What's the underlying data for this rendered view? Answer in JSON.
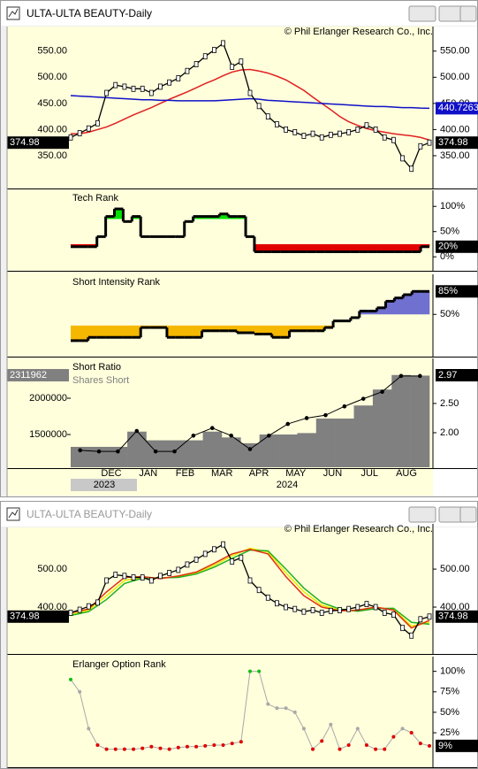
{
  "windows": [
    {
      "title": "ULTA-ULTA BEAUTY-Daily",
      "copyright": "© Phil Erlanger Research Co., Inc.",
      "time_axis": {
        "months": [
          "DEC",
          "JAN",
          "FEB",
          "MAR",
          "APR",
          "MAY",
          "JUN",
          "JUL",
          "AUG"
        ],
        "years": [
          "2023",
          "2024"
        ]
      },
      "panels": [
        {
          "type": "price",
          "ylim": [
            289,
            597
          ],
          "yticks": [
            {
              "value": 550,
              "label": "550.00"
            },
            {
              "value": 500,
              "label": "500.00"
            },
            {
              "value": 450,
              "label": "450.00"
            },
            {
              "value": 400,
              "label": "400.00"
            },
            {
              "value": 350,
              "label": "350.00"
            }
          ],
          "series": [
            {
              "color": "#e02020",
              "values": [
                392,
                392,
                395,
                400,
                405,
                412,
                420,
                428,
                435,
                442,
                450,
                458,
                465,
                472,
                480,
                488,
                495,
                503,
                510,
                514,
                515,
                512,
                508,
                502,
                495,
                485,
                475,
                462,
                450,
                438,
                425,
                415,
                408,
                402,
                398,
                395,
                392,
                390,
                388,
                385,
                380
              ]
            },
            {
              "color": "#1010c8",
              "values": [
                465,
                464,
                463,
                462,
                461,
                460,
                459,
                458,
                457,
                457,
                456,
                456,
                455,
                455,
                455,
                455,
                455,
                456,
                457,
                458,
                459,
                458,
                456,
                455,
                454,
                453,
                452,
                451,
                450,
                449,
                448,
                447,
                446,
                445,
                444,
                444,
                443,
                442,
                442,
                441,
                440.7263
              ],
              "end_label": "440.7263"
            },
            {
              "color": "#000000",
              "values": [
                385,
                393,
                402,
                412,
                470,
                485,
                482,
                478,
                478,
                470,
                482,
                490,
                498,
                512,
                525,
                540,
                552,
                565,
                520,
                530,
                470,
                445,
                425,
                410,
                400,
                395,
                388,
                392,
                385,
                390,
                392,
                395,
                400,
                408,
                400,
                385,
                380,
                345,
                325,
                368,
                374.98
              ],
              "end_label": "374.98"
            }
          ]
        },
        {
          "type": "rank",
          "title": "Tech Rank",
          "ylim": [
            -26,
            132
          ],
          "yticks": [
            {
              "value": 100,
              "label": "100%"
            },
            {
              "value": 50,
              "label": "50%"
            },
            {
              "value": 0,
              "label": "0%"
            }
          ],
          "values": [
            20,
            20,
            20,
            40,
            80,
            95,
            70,
            80,
            40,
            40,
            40,
            40,
            40,
            70,
            80,
            80,
            80,
            85,
            80,
            80,
            40,
            10,
            10,
            10,
            10,
            10,
            10,
            10,
            10,
            10,
            10,
            10,
            10,
            10,
            10,
            10,
            10,
            10,
            10,
            10,
            20
          ],
          "end_label": "20%",
          "fill_above": {
            "level": 75,
            "color": "#00e000"
          },
          "fill_below": {
            "level": 25,
            "color": "#e00000"
          }
        },
        {
          "type": "rank",
          "title": "Short Intensity Rank",
          "ylim": [
            -13,
            111
          ],
          "yticks": [
            {
              "value": 50,
              "label": "50%"
            }
          ],
          "values": [
            10,
            10,
            15,
            15,
            15,
            15,
            15,
            15,
            30,
            30,
            30,
            15,
            15,
            15,
            15,
            25,
            25,
            25,
            25,
            22,
            22,
            20,
            20,
            15,
            15,
            25,
            25,
            25,
            25,
            30,
            40,
            40,
            45,
            55,
            55,
            60,
            70,
            75,
            80,
            85,
            85
          ],
          "end_label": "85%",
          "fill_above": {
            "level": 50,
            "color": "#7070d0"
          },
          "fill_below": {
            "level": 33,
            "color": "#f5b800"
          }
        },
        {
          "type": "short",
          "ylim": [
            1049000,
            2549000
          ],
          "yticks": [
            2000000,
            1500000
          ],
          "y2lim": [
            1.41,
            3.27
          ],
          "y2ticks": [
            {
              "value": 2.5,
              "label": "2.50"
            },
            {
              "value": 2,
              "label": "2.00"
            }
          ],
          "series": [
            {
              "name": "Shares Short",
              "color": "#808080",
              "values": [
                1330000,
                1330000,
                1330000,
                1540000,
                1420000,
                1420000,
                1420000,
                1540000,
                1460000,
                1380000,
                1500000,
                1500000,
                1520000,
                1720000,
                1720000,
                1900000,
                2120000,
                2320000,
                2311962
              ],
              "end_label": "2311962"
            },
            {
              "name": "Short Ratio",
              "color": "#000000",
              "axis": "y2",
              "values": [
                1.7,
                1.68,
                1.68,
                2.03,
                1.68,
                1.68,
                1.95,
                2.08,
                1.95,
                1.72,
                1.95,
                2.15,
                2.25,
                2.3,
                2.45,
                2.58,
                2.7,
                2.97,
                2.97
              ],
              "end_label": "2.97"
            }
          ]
        }
      ]
    },
    {
      "title": "ULTA-ULTA BEAUTY-Daily",
      "copyright": "© Phil Erlanger Research Co., Inc.",
      "panels": [
        {
          "type": "price",
          "ylim": [
            279,
            619
          ],
          "yticks": [
            {
              "value": 500,
              "label": "500.00"
            },
            {
              "value": 400,
              "label": "400.00"
            }
          ],
          "series": [
            {
              "color": "#e8e800",
              "values": [
                380,
                392,
                430,
                470,
                478,
                476,
                480,
                490,
                510,
                535,
                555,
                545,
                490,
                440,
                405,
                392,
                390,
                398,
                395,
                350,
                360
              ]
            },
            {
              "color": "#20b020",
              "values": [
                378,
                388,
                420,
                462,
                476,
                477,
                478,
                487,
                505,
                528,
                550,
                548,
                500,
                450,
                412,
                395,
                389,
                396,
                397,
                360,
                355
              ]
            },
            {
              "color": "#e03010",
              "values": [
                385,
                395,
                440,
                478,
                480,
                475,
                482,
                492,
                515,
                540,
                552,
                540,
                480,
                430,
                400,
                390,
                392,
                400,
                392,
                345,
                365
              ]
            },
            {
              "color": "#000000",
              "values": [
                385,
                393,
                402,
                412,
                470,
                485,
                482,
                478,
                478,
                470,
                482,
                490,
                498,
                512,
                525,
                540,
                552,
                565,
                520,
                530,
                470,
                445,
                425,
                410,
                400,
                395,
                388,
                392,
                385,
                390,
                392,
                395,
                400,
                408,
                400,
                385,
                380,
                345,
                325,
                368,
                374.98
              ],
              "end_label": "374.98"
            }
          ]
        },
        {
          "type": "option",
          "title": "Erlanger Option Rank",
          "ylim": [
            -16,
            118
          ],
          "yticks": [
            {
              "value": 100,
              "label": "100%"
            },
            {
              "value": 75,
              "label": "75%"
            },
            {
              "value": 50,
              "label": "50%"
            },
            {
              "value": 25,
              "label": "25%"
            }
          ],
          "values": [
            90,
            75,
            30,
            10,
            5,
            5,
            5,
            5,
            6,
            8,
            6,
            5,
            7,
            8,
            8,
            9,
            10,
            10,
            12,
            14,
            100,
            100,
            60,
            55,
            55,
            50,
            30,
            5,
            15,
            35,
            5,
            10,
            30,
            10,
            5,
            5,
            20,
            30,
            25,
            12,
            9
          ],
          "end_label": "9%",
          "color": "#a8a8a8",
          "color_above": {
            "level": 85,
            "color": "#10c010"
          },
          "color_below": {
            "level": 30,
            "color": "#e00000"
          }
        }
      ]
    }
  ]
}
